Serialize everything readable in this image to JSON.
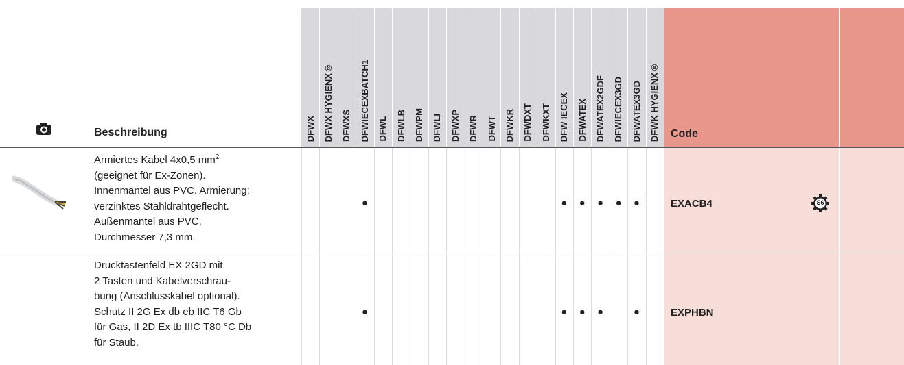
{
  "header": {
    "description_label": "Beschreibung",
    "variants": [
      "DFWX",
      "DFWX HYGIENX®",
      "DFWXS",
      "DFWIECEXBATCH1",
      "DFWL",
      "DFWLB",
      "DFWPM",
      "DFWLI",
      "DFWXP",
      "DFWR",
      "DFWT",
      "DFWKR",
      "DFWDXT",
      "DFWKXT",
      "DFW IECEX",
      "DFWATEX",
      "DFWATEX2GDF",
      "DFWIECEX3GD",
      "DFWATEX3GD",
      "DFWK HYGIENX®"
    ],
    "code_label": "Code"
  },
  "rows": [
    {
      "description": {
        "lines": [
          "Armiertes Kabel 4x0,5 mm",
          "(geeignet für Ex-Zonen).",
          "Innenmantel aus PVC. Armierung:",
          "verzinktes Stahldrahtgeflecht.",
          "Außenmantel aus PVC,",
          "Durchmesser 7,3 mm."
        ],
        "superscript": "2"
      },
      "marks": [
        null,
        null,
        null,
        "●",
        null,
        null,
        null,
        null,
        null,
        null,
        null,
        null,
        null,
        null,
        "●",
        "●",
        "●",
        "●",
        "●",
        null
      ],
      "code": "EXACB4",
      "badge": "S6"
    },
    {
      "description": {
        "lines": [
          "Drucktastenfeld EX 2GD mit",
          "2 Tasten und Kabelverschrau-",
          "bung (Anschlusskabel optional).",
          "Schutz II 2G Ex db eb IIC T6 Gb",
          "für Gas, II 2D Ex tb IIIC T80 °C Db",
          "für Staub."
        ]
      },
      "marks": [
        null,
        null,
        null,
        "●",
        null,
        null,
        null,
        null,
        null,
        null,
        null,
        null,
        null,
        null,
        "●",
        "●",
        "●",
        null,
        "●",
        null
      ],
      "code": "EXPHBN"
    }
  ]
}
